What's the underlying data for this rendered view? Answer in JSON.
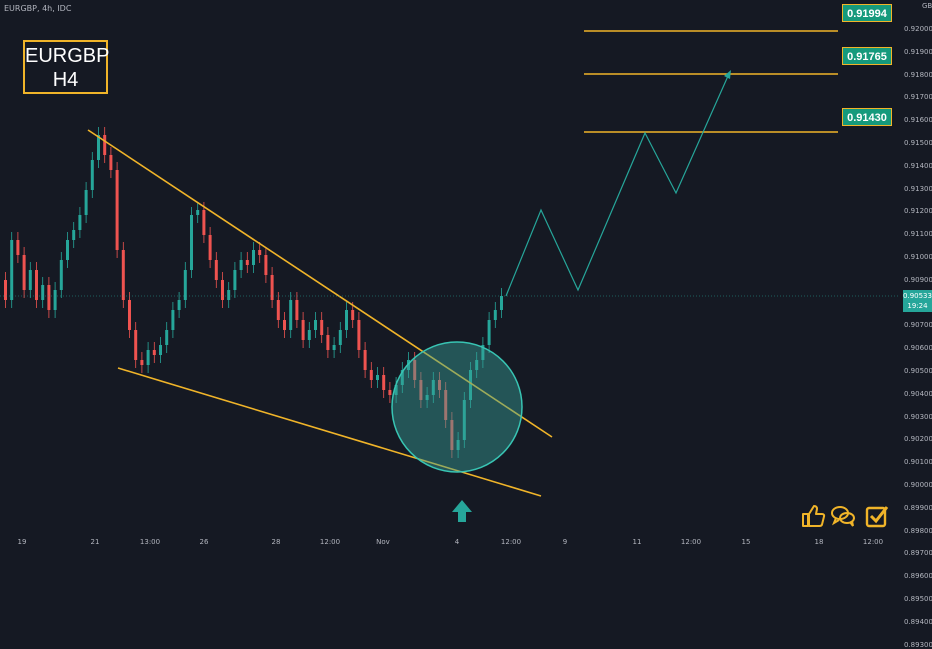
{
  "header": {
    "ticker_info": "EURGBP, 4h, IDC"
  },
  "badge": {
    "line1": "EURGBP",
    "line2": "H4"
  },
  "axis": {
    "currency": "GBP",
    "current_price": "0.90533",
    "current_timer": "19:24"
  },
  "levels": [
    {
      "label": "0.91994",
      "value": 0.91994
    },
    {
      "label": "0.91765",
      "value": 0.91765
    },
    {
      "label": "0.91430",
      "value": 0.9143
    }
  ],
  "colors": {
    "bg": "#151923",
    "up": "#26a69a",
    "down": "#ef5350",
    "trend": "#f0b429",
    "badge_bg": "#159a7c"
  },
  "icons": [
    "thumbs-up-icon",
    "chat-bubbles-icon",
    "checkbox-icon"
  ],
  "chart_data": {
    "type": "candlestick",
    "ylim": [
      0.8925,
      0.925
    ],
    "y_ticks": [
      "0.92000",
      "0.91900",
      "0.91800",
      "0.91700",
      "0.91600",
      "0.91500",
      "0.91400",
      "0.91300",
      "0.91200",
      "0.91100",
      "0.91000",
      "0.90900",
      "0.90800",
      "0.90700",
      "0.90600",
      "0.90500",
      "0.90400",
      "0.90300",
      "0.90200",
      "0.90100",
      "0.90000",
      "0.89900",
      "0.89800",
      "0.89700",
      "0.89600",
      "0.89500",
      "0.89400",
      "0.89300"
    ],
    "x_ticks": [
      "19",
      "21",
      "13:00",
      "26",
      "28",
      "12:00",
      "Nov",
      "4",
      "12:00",
      "9",
      "11",
      "12:00",
      "15",
      "18",
      "12:00"
    ],
    "annotations": [
      "falling wedge",
      "breakout circle",
      "projected zig-zag path"
    ]
  }
}
